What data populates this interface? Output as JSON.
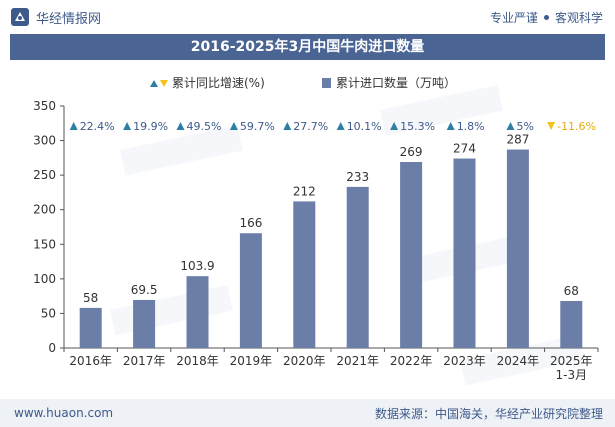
{
  "header": {
    "brand": "华经情报网",
    "tagline_left": "专业严谨",
    "tagline_right": "客观科学"
  },
  "footer": {
    "url": "www.huaon.com",
    "source": "数据来源：中国海关，华经产业研究院整理"
  },
  "colors": {
    "bar": "#6b7ea8",
    "up_marker": "#2e7fa6",
    "down_marker": "#f2c318",
    "title_bg": "#4a6494",
    "footer_bg": "#eef1f6"
  },
  "chart_data": {
    "type": "bar",
    "title": "2016-2025年3月中国牛肉进口数量",
    "categories": [
      "2016年",
      "2017年",
      "2018年",
      "2019年",
      "2020年",
      "2021年",
      "2022年",
      "2023年",
      "2024年",
      "2025年\n1-3月"
    ],
    "series": [
      {
        "name": "累计进口数量（万吨）",
        "values": [
          58,
          69.5,
          103.9,
          166,
          212,
          233,
          269,
          274,
          287,
          68
        ],
        "labels": [
          "58",
          "69.5",
          "103.9",
          "166",
          "212",
          "233",
          "269",
          "274",
          "287",
          "68"
        ]
      },
      {
        "name": "累计同比增速(%)",
        "values": [
          22.4,
          19.9,
          49.5,
          59.7,
          27.7,
          10.1,
          15.3,
          1.8,
          5,
          -11.6
        ],
        "labels": [
          "22.4%",
          "19.9%",
          "49.5%",
          "59.7%",
          "27.7%",
          "10.1%",
          "15.3%",
          "1.8%",
          "5%",
          "-11.6%"
        ]
      }
    ],
    "ylim": [
      0,
      350
    ],
    "yticks": [
      0,
      50,
      100,
      150,
      200,
      250,
      300,
      350
    ],
    "grid": false,
    "legend_position": "top"
  }
}
